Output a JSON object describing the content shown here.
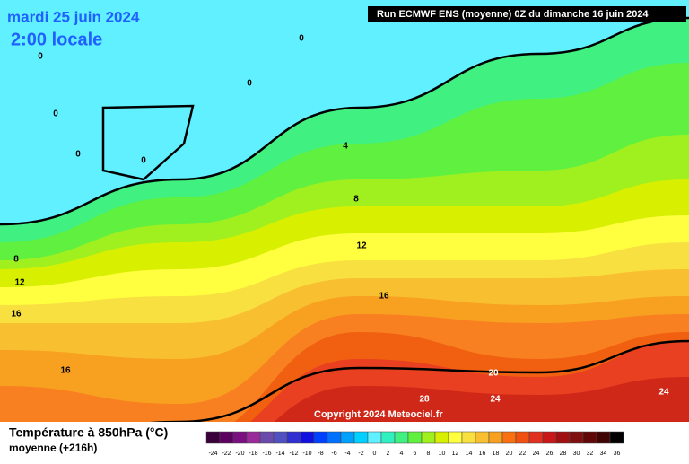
{
  "header": {
    "date": "mardi 25 juin 2024",
    "time": "2:00 locale",
    "run": "Run ECMWF ENS (moyenne) 0Z du dimanche 16 juin 2024"
  },
  "map": {
    "copyright": "Copyright 2024 Meteociel.fr",
    "contour_labels": [
      "0",
      "0",
      "0",
      "0",
      "0",
      "0",
      "4",
      "8",
      "8",
      "12",
      "12",
      "16",
      "16",
      "16",
      "20",
      "24",
      "24",
      "28"
    ]
  },
  "legend": {
    "title": "Température à 850hPa (°C)",
    "subtitle": "moyenne  (+216h)",
    "bins": [
      {
        "value": -24,
        "color": "#3a003a"
      },
      {
        "value": -22,
        "color": "#5c0060"
      },
      {
        "value": -20,
        "color": "#7a1080"
      },
      {
        "value": -18,
        "color": "#9a2a9a"
      },
      {
        "value": -16,
        "color": "#6a4aaa"
      },
      {
        "value": -14,
        "color": "#5050c0"
      },
      {
        "value": -12,
        "color": "#3030d0"
      },
      {
        "value": -10,
        "color": "#1010e0"
      },
      {
        "value": -8,
        "color": "#0040ff"
      },
      {
        "value": -6,
        "color": "#0070ff"
      },
      {
        "value": -4,
        "color": "#00a0ff"
      },
      {
        "value": -2,
        "color": "#00d0ff"
      },
      {
        "value": 0,
        "color": "#60f0ff"
      },
      {
        "value": 2,
        "color": "#30f0c0"
      },
      {
        "value": 4,
        "color": "#40f080"
      },
      {
        "value": 6,
        "color": "#60f040"
      },
      {
        "value": 8,
        "color": "#a0f020"
      },
      {
        "value": 10,
        "color": "#d8f000"
      },
      {
        "value": 12,
        "color": "#ffff40"
      },
      {
        "value": 14,
        "color": "#f8e040"
      },
      {
        "value": 16,
        "color": "#f8c030"
      },
      {
        "value": 18,
        "color": "#f8a020"
      },
      {
        "value": 20,
        "color": "#f87010"
      },
      {
        "value": 22,
        "color": "#f05010"
      },
      {
        "value": 24,
        "color": "#e03020"
      },
      {
        "value": 26,
        "color": "#c81818"
      },
      {
        "value": 28,
        "color": "#a01010"
      },
      {
        "value": 30,
        "color": "#801010"
      },
      {
        "value": 32,
        "color": "#600808"
      },
      {
        "value": 34,
        "color": "#400404"
      },
      {
        "value": 36,
        "color": "#000000"
      }
    ]
  }
}
